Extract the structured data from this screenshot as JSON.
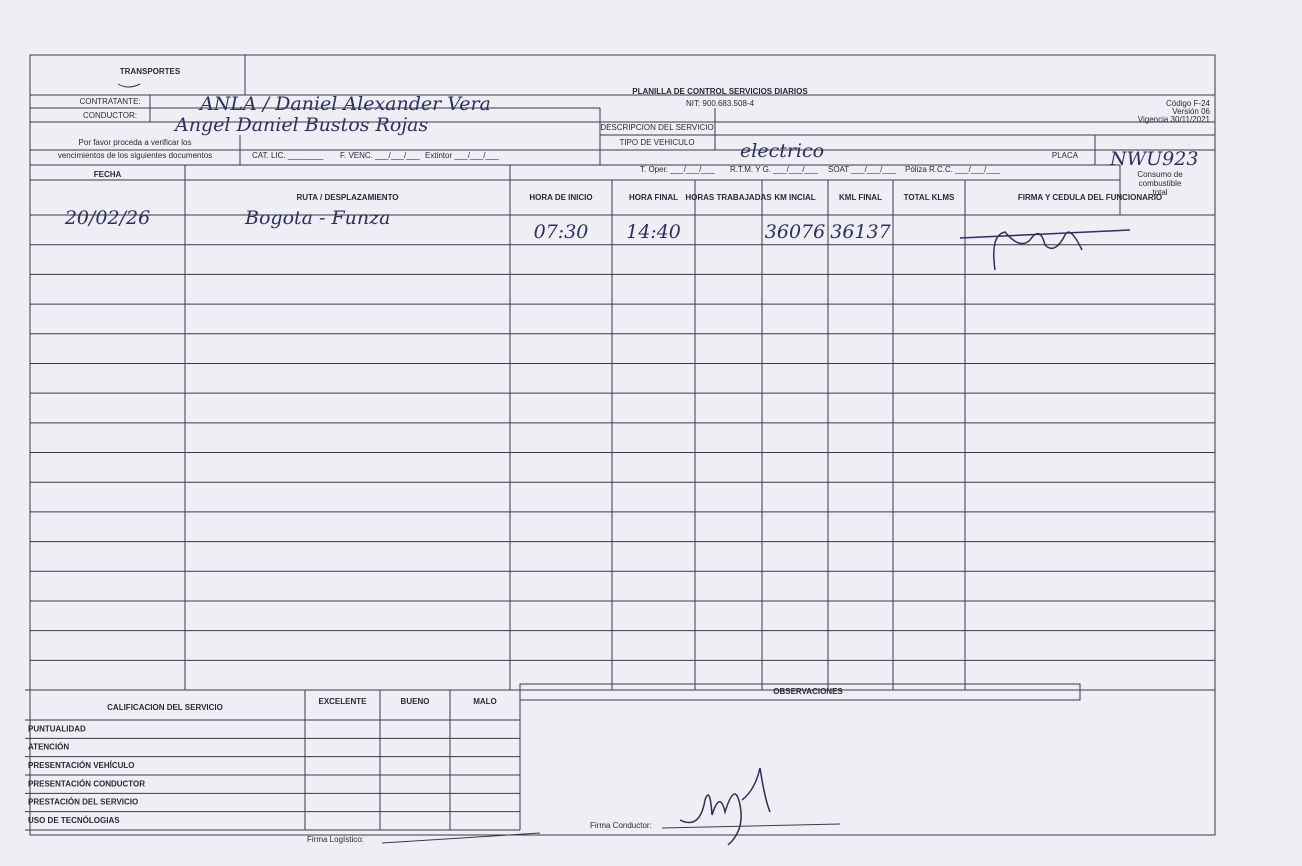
{
  "header": {
    "brand": "TRANSPORTES",
    "title": "PLANILLA DE CONTROL SERVICIOS DIARIOS",
    "nit": "NIT: 900.683.508-4",
    "code": "Código F-24",
    "version": "Versión 06",
    "validity": "Vigencia 30/11/2021"
  },
  "fields": {
    "contratante_label": "CONTRATANTE:",
    "contratante": "ANLA / Daniel Alexander Vera",
    "conductor_label": "CONDUCTOR:",
    "conductor": "Angel Daniel Bustos Rojas",
    "descripcion_label": "DESCRIPCION DEL SERVICIO",
    "tipo_vehiculo_label": "TIPO DE VEHICULO",
    "tipo_vehiculo": "electrico",
    "placa_label": "PLACA",
    "placa": "NWU923",
    "consumo_label": [
      "Consumo de",
      "combustible",
      "total"
    ]
  },
  "documents": {
    "note": [
      "Por favor proceda a verificar los",
      "vencimientos de los siguientes documentos"
    ],
    "items": [
      "CAT. LIC. ________",
      "F. VENC. ___/___/___",
      "Extintor ___/___/___",
      "T. Oper. ___/___/___",
      "R.T.M. Y G. ___/___/___",
      "SOAT ___/___/___",
      "Póliza R.C.C. ___/___/___"
    ]
  },
  "table": {
    "columns": [
      "FECHA",
      "RUTA / DESPLAZAMIENTO",
      "HORA DE INICIO",
      "HORA FINAL",
      "HORAS TRABAJADAS",
      "KM INCIAL",
      "KML FINAL",
      "TOTAL KLMS",
      "FIRMA Y CEDULA DEL FUNCIONARIO"
    ],
    "rows": [
      {
        "fecha": "20/02/26",
        "ruta": "Bogota - Funza",
        "hora_inicio": "07:30",
        "hora_final": "14:40",
        "km_inicial": "36076",
        "km_final": "36137"
      }
    ]
  },
  "rating": {
    "title": "CALIFICACION DEL SERVICIO",
    "levels": [
      "EXCELENTE",
      "BUENO",
      "MALO"
    ],
    "criteria": [
      "PUNTUALIDAD",
      "ATENCIÓN",
      "PRESENTACIÓN VEHÍCULO",
      "PRESENTACIÓN CONDUCTOR",
      "PRESTACIÓN DEL SERVICIO",
      "USO DE TECNÓLOGIAS"
    ]
  },
  "footer": {
    "observaciones": "OBSERVACIONES",
    "firma_logistico": "Firma Logístico:",
    "firma_conductor": "Firma Conductor:"
  }
}
